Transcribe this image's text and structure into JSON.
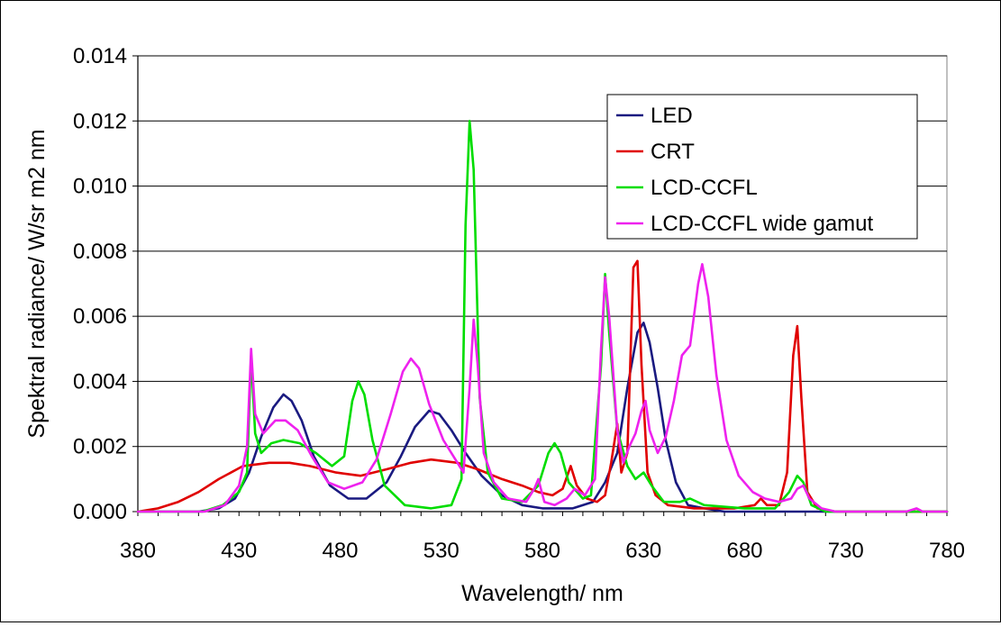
{
  "chart_data": {
    "type": "line",
    "title": "",
    "xlabel": "Wavelength/ nm",
    "ylabel": "Spektral radiance/ W/sr m2 nm",
    "xlim": [
      380,
      780
    ],
    "ylim": [
      0,
      0.014
    ],
    "x_ticks": [
      "380",
      "430",
      "480",
      "530",
      "580",
      "630",
      "680",
      "730",
      "780"
    ],
    "y_ticks": [
      "0.000",
      "0.002",
      "0.004",
      "0.006",
      "0.008",
      "0.010",
      "0.012",
      "0.014"
    ],
    "grid": "horizontal",
    "legend_position": "top-right",
    "series": [
      {
        "name": "LED",
        "color": "#1a1a80",
        "points": [
          [
            380,
            0
          ],
          [
            410,
            0
          ],
          [
            420,
            0.0001
          ],
          [
            428,
            0.0004
          ],
          [
            435,
            0.0012
          ],
          [
            441,
            0.0023
          ],
          [
            447,
            0.0032
          ],
          [
            452,
            0.0036
          ],
          [
            456,
            0.0034
          ],
          [
            461,
            0.0028
          ],
          [
            467,
            0.0017
          ],
          [
            475,
            0.0008
          ],
          [
            484,
            0.0004
          ],
          [
            493,
            0.0004
          ],
          [
            503,
            0.0009
          ],
          [
            510,
            0.0017
          ],
          [
            517,
            0.0026
          ],
          [
            524,
            0.0031
          ],
          [
            529,
            0.003
          ],
          [
            535,
            0.0025
          ],
          [
            542,
            0.0018
          ],
          [
            550,
            0.0011
          ],
          [
            560,
            0.0005
          ],
          [
            570,
            0.0002
          ],
          [
            580,
            0.0001
          ],
          [
            595,
            0.0001
          ],
          [
            605,
            0.0003
          ],
          [
            611,
            0.0009
          ],
          [
            617,
            0.0018
          ],
          [
            622,
            0.0038
          ],
          [
            627,
            0.0055
          ],
          [
            630,
            0.0058
          ],
          [
            633,
            0.0052
          ],
          [
            637,
            0.0038
          ],
          [
            641,
            0.0022
          ],
          [
            646,
            0.0009
          ],
          [
            652,
            0.0002
          ],
          [
            660,
            0.0001
          ],
          [
            670,
            0
          ],
          [
            780,
            0
          ]
        ]
      },
      {
        "name": "CRT",
        "color": "#e00000",
        "points": [
          [
            380,
            0
          ],
          [
            390,
            0.0001
          ],
          [
            400,
            0.0003
          ],
          [
            410,
            0.0006
          ],
          [
            420,
            0.001
          ],
          [
            432,
            0.0014
          ],
          [
            445,
            0.0015
          ],
          [
            455,
            0.0015
          ],
          [
            465,
            0.0014
          ],
          [
            478,
            0.0012
          ],
          [
            490,
            0.0011
          ],
          [
            503,
            0.0013
          ],
          [
            515,
            0.0015
          ],
          [
            525,
            0.0016
          ],
          [
            538,
            0.0015
          ],
          [
            548,
            0.0013
          ],
          [
            560,
            0.001
          ],
          [
            570,
            0.0008
          ],
          [
            578,
            0.0006
          ],
          [
            585,
            0.0005
          ],
          [
            590,
            0.0007
          ],
          [
            594,
            0.0014
          ],
          [
            597,
            0.0008
          ],
          [
            602,
            0.0004
          ],
          [
            607,
            0.0003
          ],
          [
            611,
            0.0005
          ],
          [
            614,
            0.0015
          ],
          [
            617,
            0.0027
          ],
          [
            619,
            0.0012
          ],
          [
            622,
            0.0018
          ],
          [
            625,
            0.0075
          ],
          [
            627,
            0.0077
          ],
          [
            629,
            0.0045
          ],
          [
            632,
            0.0012
          ],
          [
            636,
            0.0005
          ],
          [
            642,
            0.0002
          ],
          [
            655,
            0.0001
          ],
          [
            675,
            0.0001
          ],
          [
            685,
            0.0002
          ],
          [
            688,
            0.0004
          ],
          [
            691,
            0.0002
          ],
          [
            697,
            0.0002
          ],
          [
            701,
            0.0012
          ],
          [
            704,
            0.0048
          ],
          [
            706,
            0.0057
          ],
          [
            708,
            0.0035
          ],
          [
            711,
            0.0006
          ],
          [
            716,
            0.0001
          ],
          [
            725,
            0
          ],
          [
            780,
            0
          ]
        ]
      },
      {
        "name": "LCD-CCFL",
        "color": "#00dd00",
        "points": [
          [
            380,
            0
          ],
          [
            412,
            0
          ],
          [
            422,
            0.0002
          ],
          [
            430,
            0.0006
          ],
          [
            434,
            0.0012
          ],
          [
            436,
            0.0048
          ],
          [
            438,
            0.0024
          ],
          [
            441,
            0.0018
          ],
          [
            446,
            0.0021
          ],
          [
            452,
            0.0022
          ],
          [
            460,
            0.0021
          ],
          [
            468,
            0.0018
          ],
          [
            476,
            0.0014
          ],
          [
            482,
            0.0017
          ],
          [
            486,
            0.0034
          ],
          [
            489,
            0.004
          ],
          [
            492,
            0.0036
          ],
          [
            496,
            0.0022
          ],
          [
            502,
            0.0008
          ],
          [
            512,
            0.0002
          ],
          [
            525,
            0.0001
          ],
          [
            535,
            0.0002
          ],
          [
            540,
            0.001
          ],
          [
            542,
            0.0088
          ],
          [
            544,
            0.012
          ],
          [
            546,
            0.0105
          ],
          [
            549,
            0.0035
          ],
          [
            553,
            0.0012
          ],
          [
            560,
            0.0004
          ],
          [
            570,
            0.0003
          ],
          [
            578,
            0.0008
          ],
          [
            583,
            0.0018
          ],
          [
            586,
            0.0021
          ],
          [
            589,
            0.0018
          ],
          [
            593,
            0.0009
          ],
          [
            600,
            0.0004
          ],
          [
            604,
            0.0005
          ],
          [
            609,
            0.0045
          ],
          [
            611,
            0.0073
          ],
          [
            613,
            0.0055
          ],
          [
            617,
            0.0025
          ],
          [
            622,
            0.0014
          ],
          [
            626,
            0.001
          ],
          [
            630,
            0.0012
          ],
          [
            634,
            0.0008
          ],
          [
            640,
            0.0003
          ],
          [
            648,
            0.0003
          ],
          [
            653,
            0.0004
          ],
          [
            660,
            0.0002
          ],
          [
            680,
            0.0001
          ],
          [
            695,
            0.0001
          ],
          [
            702,
            0.0006
          ],
          [
            706,
            0.0011
          ],
          [
            709,
            0.0009
          ],
          [
            713,
            0.0002
          ],
          [
            720,
            0
          ],
          [
            780,
            0
          ]
        ]
      },
      {
        "name": "LCD-CCFL wide gamut",
        "color": "#ee22ee",
        "points": [
          [
            380,
            0
          ],
          [
            413,
            0
          ],
          [
            423,
            0.0002
          ],
          [
            430,
            0.0008
          ],
          [
            434,
            0.002
          ],
          [
            436,
            0.005
          ],
          [
            438,
            0.003
          ],
          [
            442,
            0.0024
          ],
          [
            448,
            0.0028
          ],
          [
            453,
            0.0028
          ],
          [
            459,
            0.0025
          ],
          [
            466,
            0.0017
          ],
          [
            474,
            0.0009
          ],
          [
            482,
            0.0007
          ],
          [
            491,
            0.0009
          ],
          [
            498,
            0.0016
          ],
          [
            505,
            0.003
          ],
          [
            511,
            0.0043
          ],
          [
            515,
            0.0047
          ],
          [
            519,
            0.0044
          ],
          [
            524,
            0.0033
          ],
          [
            531,
            0.0022
          ],
          [
            537,
            0.0016
          ],
          [
            541,
            0.0012
          ],
          [
            544,
            0.0038
          ],
          [
            546,
            0.0059
          ],
          [
            548,
            0.0045
          ],
          [
            551,
            0.0018
          ],
          [
            556,
            0.0009
          ],
          [
            563,
            0.0004
          ],
          [
            572,
            0.0003
          ],
          [
            576,
            0.0007
          ],
          [
            578,
            0.001
          ],
          [
            581,
            0.0003
          ],
          [
            586,
            0.0002
          ],
          [
            592,
            0.0004
          ],
          [
            596,
            0.0007
          ],
          [
            601,
            0.0005
          ],
          [
            606,
            0.001
          ],
          [
            609,
            0.005
          ],
          [
            611,
            0.0072
          ],
          [
            613,
            0.006
          ],
          [
            617,
            0.0025
          ],
          [
            620,
            0.0015
          ],
          [
            623,
            0.002
          ],
          [
            626,
            0.0024
          ],
          [
            629,
            0.0031
          ],
          [
            631,
            0.0034
          ],
          [
            633,
            0.0025
          ],
          [
            637,
            0.0018
          ],
          [
            641,
            0.0023
          ],
          [
            645,
            0.0034
          ],
          [
            649,
            0.0048
          ],
          [
            653,
            0.0051
          ],
          [
            657,
            0.007
          ],
          [
            659,
            0.0076
          ],
          [
            662,
            0.0066
          ],
          [
            666,
            0.0042
          ],
          [
            671,
            0.0022
          ],
          [
            677,
            0.0011
          ],
          [
            684,
            0.0006
          ],
          [
            690,
            0.0004
          ],
          [
            697,
            0.0003
          ],
          [
            703,
            0.0004
          ],
          [
            706,
            0.0007
          ],
          [
            709,
            0.0008
          ],
          [
            712,
            0.0004
          ],
          [
            718,
            0.0001
          ],
          [
            725,
            0
          ],
          [
            760,
            0
          ],
          [
            765,
            0.0001
          ],
          [
            768,
            0
          ],
          [
            780,
            0
          ]
        ]
      }
    ]
  }
}
